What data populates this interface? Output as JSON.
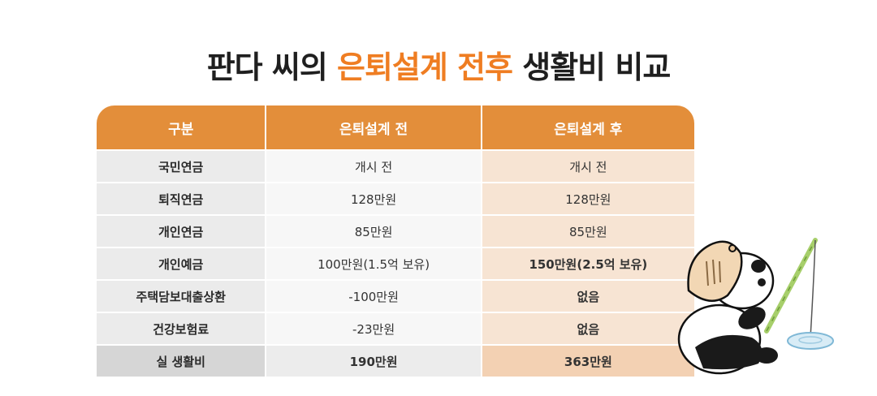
{
  "title": {
    "part1": "판다 씨의",
    "highlight": "은퇴설계 전후",
    "part2": "생활비 비교",
    "highlight_color": "#ef7d22"
  },
  "table": {
    "headers": [
      "구분",
      "은퇴설계 전",
      "은퇴설계 후"
    ],
    "rows": [
      [
        "국민연금",
        "개시 전",
        "개시 전"
      ],
      [
        "퇴직연금",
        "128만원",
        "128만원"
      ],
      [
        "개인연금",
        "85만원",
        "85만원"
      ],
      [
        "개인예금",
        "100만원(1.5억 보유)",
        "150만원(2.5억 보유)"
      ],
      [
        "주택담보대출상환",
        "-100만원",
        "없음"
      ],
      [
        "건강보험료",
        "-23만원",
        "없음"
      ],
      [
        "실 생활비",
        "190만원",
        "363만원"
      ]
    ],
    "header_color": "#e38e3a"
  },
  "illustration": {
    "icon": "panda-fishing-icon"
  }
}
